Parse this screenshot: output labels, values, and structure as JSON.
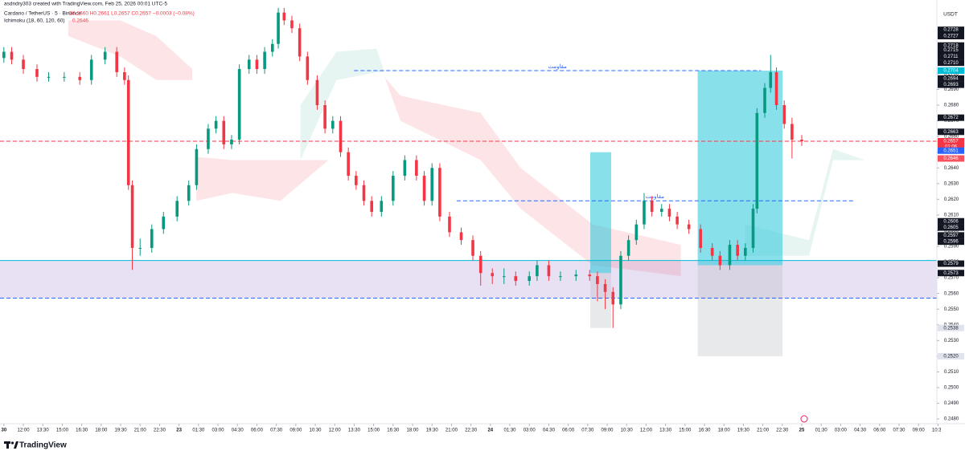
{
  "header": {
    "credit": "asdndry303 created with TradingView.com, Feb 25, 2026 00:01 UTC-5",
    "symbol": "Cardano / TetherUS · 5 · Binance",
    "ohlc": "O0.2660 H0.2661 L0.2657 C0.2657 −0.0003 (−0.08%)",
    "indicator": "Ichimoku (18, 60, 120, 60)",
    "indicator_value": "0.2646",
    "currency": "USDT",
    "logo": "TradingView"
  },
  "chart_data": {
    "type": "candlestick",
    "up_color": "#089981",
    "down_color": "#f23645",
    "grid": false,
    "xlim": [
      -13.8,
      58.6
    ],
    "ylim": [
      0.2477,
      0.2747
    ],
    "xticks": [
      {
        "value": -13.5,
        "label": "30"
      },
      {
        "value": -12,
        "label": "12:00"
      },
      {
        "value": -10.5,
        "label": "13:30"
      },
      {
        "value": -9,
        "label": "15:00"
      },
      {
        "value": -7.5,
        "label": "16:30"
      },
      {
        "value": -6,
        "label": "18:00"
      },
      {
        "value": -4.5,
        "label": "19:30"
      },
      {
        "value": -3,
        "label": "21:00"
      },
      {
        "value": -1.5,
        "label": "22:30"
      },
      {
        "value": 0,
        "label": "23"
      },
      {
        "value": 1.5,
        "label": "01:30"
      },
      {
        "value": 3,
        "label": "03:00"
      },
      {
        "value": 4.5,
        "label": "04:30"
      },
      {
        "value": 6,
        "label": "06:00"
      },
      {
        "value": 7.5,
        "label": "07:30"
      },
      {
        "value": 9,
        "label": "09:00"
      },
      {
        "value": 10.5,
        "label": "10:30"
      },
      {
        "value": 12,
        "label": "12:00"
      },
      {
        "value": 13.5,
        "label": "13:30"
      },
      {
        "value": 15,
        "label": "15:00"
      },
      {
        "value": 16.5,
        "label": "16:30"
      },
      {
        "value": 18,
        "label": "18:00"
      },
      {
        "value": 19.5,
        "label": "19:30"
      },
      {
        "value": 21,
        "label": "21:00"
      },
      {
        "value": 22.5,
        "label": "22:30"
      },
      {
        "value": 24,
        "label": "24"
      },
      {
        "value": 25.5,
        "label": "01:30"
      },
      {
        "value": 27,
        "label": "03:00"
      },
      {
        "value": 28.5,
        "label": "04:30"
      },
      {
        "value": 30,
        "label": "06:00"
      },
      {
        "value": 31.5,
        "label": "07:30"
      },
      {
        "value": 33,
        "label": "09:00"
      },
      {
        "value": 34.5,
        "label": "10:30"
      },
      {
        "value": 36,
        "label": "12:00"
      },
      {
        "value": 37.5,
        "label": "13:30"
      },
      {
        "value": 39,
        "label": "15:00"
      },
      {
        "value": 40.5,
        "label": "16:30"
      },
      {
        "value": 42,
        "label": "18:00"
      },
      {
        "value": 43.5,
        "label": "19:30"
      },
      {
        "value": 45,
        "label": "21:00"
      },
      {
        "value": 46.5,
        "label": "22:30"
      },
      {
        "value": 48,
        "label": "25"
      },
      {
        "value": 49.5,
        "label": "01:30"
      },
      {
        "value": 51,
        "label": "03:00"
      },
      {
        "value": 52.5,
        "label": "04:30"
      },
      {
        "value": 54,
        "label": "06:00"
      },
      {
        "value": 55.5,
        "label": "07:30"
      },
      {
        "value": 57,
        "label": "09:00"
      },
      {
        "value": 58.5,
        "label": "10:30"
      }
    ],
    "yticks": [
      {
        "value": 0.248,
        "label": "0.2480"
      },
      {
        "value": 0.249,
        "label": "0.2490"
      },
      {
        "value": 0.25,
        "label": "0.2500"
      },
      {
        "value": 0.251,
        "label": "0.2510"
      },
      {
        "value": 0.252,
        "label": "0.2520"
      },
      {
        "value": 0.253,
        "label": "0.2530"
      },
      {
        "value": 0.254,
        "label": "0.2540"
      },
      {
        "value": 0.255,
        "label": "0.2550"
      },
      {
        "value": 0.256,
        "label": "0.2560"
      },
      {
        "value": 0.257,
        "label": "0.2570"
      },
      {
        "value": 0.258,
        "label": "0.2580"
      },
      {
        "value": 0.259,
        "label": "0.2590"
      },
      {
        "value": 0.26,
        "label": "0.2600"
      },
      {
        "value": 0.261,
        "label": "0.2610"
      },
      {
        "value": 0.262,
        "label": "0.2620"
      },
      {
        "value": 0.263,
        "label": "0.2630"
      },
      {
        "value": 0.264,
        "label": "0.2640"
      },
      {
        "value": 0.265,
        "label": "0.2650"
      },
      {
        "value": 0.266,
        "label": "0.2660"
      },
      {
        "value": 0.267,
        "label": "0.2670"
      },
      {
        "value": 0.268,
        "label": "0.2680"
      },
      {
        "value": 0.269,
        "label": "0.2690"
      },
      {
        "value": 0.27,
        "label": "0.2700"
      }
    ],
    "x": [
      -13.5,
      -12.9,
      -12,
      -10.95,
      -10.05,
      -8.85,
      -7.65,
      -6.75,
      -5.7,
      -4.8,
      -4.2,
      -3.9,
      -3.6,
      -3,
      -2.1,
      -1.2,
      -0.15,
      0.75,
      1.35,
      2.25,
      2.85,
      3.45,
      4.05,
      4.65,
      5.4,
      6,
      6.6,
      7.2,
      7.65,
      8.1,
      8.7,
      9.3,
      9.9,
      10.65,
      11.25,
      11.85,
      12.45,
      13.05,
      13.65,
      14.25,
      14.85,
      15.6,
      16.5,
      17.4,
      18.3,
      18.9,
      19.5,
      20.1,
      20.85,
      21.75,
      22.65,
      23.25,
      24.15,
      25.05,
      25.95,
      27,
      27.6,
      28.5,
      29.4,
      30.6,
      31.65,
      32.25,
      32.85,
      33.45,
      34.05,
      34.65,
      35.25,
      35.85,
      36.45,
      37.2,
      37.8,
      38.4,
      39.3,
      40.2,
      41.1,
      41.7,
      42.45,
      43.05,
      43.65,
      44.25,
      44.55,
      45.15,
      45.6,
      46.05,
      46.65,
      47.25,
      48
    ],
    "open": [
      0.271,
      0.2714,
      0.2709,
      0.2703,
      0.2698,
      0.2698,
      0.2698,
      0.2696,
      0.2709,
      0.2714,
      0.2701,
      0.2696,
      0.2629,
      0.2589,
      0.2589,
      0.2601,
      0.2609,
      0.2619,
      0.2629,
      0.2652,
      0.2665,
      0.267,
      0.2655,
      0.2658,
      0.2703,
      0.2709,
      0.2703,
      0.2714,
      0.2719,
      0.2739,
      0.2734,
      0.2729,
      0.2711,
      0.2696,
      0.268,
      0.2665,
      0.267,
      0.265,
      0.2635,
      0.2629,
      0.2619,
      0.2612,
      0.2619,
      0.2635,
      0.2645,
      0.2635,
      0.2619,
      0.264,
      0.2609,
      0.2599,
      0.2594,
      0.2584,
      0.2573,
      0.2571,
      0.2571,
      0.2568,
      0.2571,
      0.2578,
      0.2571,
      0.2571,
      0.2572,
      0.2571,
      0.2566,
      0.2561,
      0.2553,
      0.2584,
      0.2594,
      0.2604,
      0.2619,
      0.2612,
      0.2614,
      0.2609,
      0.2604,
      0.2601,
      0.2589,
      0.2584,
      0.2578,
      0.2591,
      0.2584,
      0.2589,
      0.2614,
      0.2675,
      0.2691,
      0.2701,
      0.268,
      0.2668,
      0.2658
    ],
    "high": [
      0.2717,
      0.2717,
      0.2712,
      0.2706,
      0.2701,
      0.2701,
      0.2701,
      0.2712,
      0.2717,
      0.2717,
      0.2704,
      0.2699,
      0.2632,
      0.2595,
      0.2604,
      0.2612,
      0.2622,
      0.2632,
      0.2655,
      0.2668,
      0.2673,
      0.2673,
      0.2661,
      0.2706,
      0.2712,
      0.2712,
      0.2717,
      0.2722,
      0.2742,
      0.2742,
      0.2737,
      0.2732,
      0.2714,
      0.2699,
      0.2683,
      0.2673,
      0.2673,
      0.2653,
      0.2638,
      0.2632,
      0.2622,
      0.2622,
      0.2638,
      0.2648,
      0.2648,
      0.2638,
      0.2643,
      0.2643,
      0.2612,
      0.2602,
      0.2597,
      0.2587,
      0.2576,
      0.2576,
      0.2574,
      0.2574,
      0.2581,
      0.2581,
      0.2574,
      0.2575,
      0.2575,
      0.2574,
      0.2569,
      0.2564,
      0.2587,
      0.2597,
      0.2607,
      0.2624,
      0.2622,
      0.2617,
      0.2617,
      0.2612,
      0.2607,
      0.2604,
      0.2592,
      0.2587,
      0.2594,
      0.2594,
      0.2592,
      0.2617,
      0.2678,
      0.2694,
      0.2712,
      0.2704,
      0.2683,
      0.2672,
      0.2661
    ],
    "low": [
      0.2707,
      0.2706,
      0.27,
      0.2695,
      0.2695,
      0.2695,
      0.2693,
      0.2693,
      0.2706,
      0.2698,
      0.2693,
      0.2626,
      0.2575,
      0.2584,
      0.2586,
      0.2598,
      0.2606,
      0.2616,
      0.2626,
      0.2649,
      0.2662,
      0.2652,
      0.2652,
      0.2655,
      0.27,
      0.27,
      0.27,
      0.2711,
      0.2716,
      0.2731,
      0.2726,
      0.2708,
      0.2693,
      0.2677,
      0.2662,
      0.2662,
      0.2647,
      0.2632,
      0.2626,
      0.2616,
      0.2609,
      0.2609,
      0.2616,
      0.2632,
      0.2632,
      0.2616,
      0.2616,
      0.2606,
      0.2596,
      0.2591,
      0.2581,
      0.2565,
      0.2566,
      0.2566,
      0.2565,
      0.2565,
      0.2568,
      0.2568,
      0.2568,
      0.2568,
      0.2568,
      0.2555,
      0.255,
      0.2538,
      0.255,
      0.2581,
      0.2591,
      0.2601,
      0.2609,
      0.2609,
      0.2606,
      0.2601,
      0.2598,
      0.2586,
      0.2581,
      0.2575,
      0.2575,
      0.2581,
      0.2581,
      0.2586,
      0.2611,
      0.2672,
      0.2688,
      0.2677,
      0.2665,
      0.2646,
      0.2654
    ],
    "close": [
      0.2714,
      0.2709,
      0.2703,
      0.2698,
      0.2698,
      0.2698,
      0.2696,
      0.2709,
      0.2714,
      0.2701,
      0.2696,
      0.2629,
      0.2589,
      0.2589,
      0.2601,
      0.2609,
      0.2619,
      0.2629,
      0.2652,
      0.2665,
      0.267,
      0.2655,
      0.2658,
      0.2703,
      0.2709,
      0.2703,
      0.2714,
      0.2719,
      0.2739,
      0.2734,
      0.2729,
      0.2711,
      0.2696,
      0.268,
      0.2665,
      0.267,
      0.265,
      0.2635,
      0.2629,
      0.2619,
      0.2612,
      0.2619,
      0.2635,
      0.2645,
      0.2635,
      0.2619,
      0.264,
      0.2609,
      0.2599,
      0.2594,
      0.2584,
      0.2573,
      0.2571,
      0.2571,
      0.2568,
      0.2571,
      0.2578,
      0.2571,
      0.2571,
      0.2572,
      0.2571,
      0.2566,
      0.2561,
      0.2553,
      0.2584,
      0.2594,
      0.2604,
      0.2619,
      0.2612,
      0.2614,
      0.2609,
      0.2604,
      0.2601,
      0.2589,
      0.2584,
      0.2578,
      0.2591,
      0.2584,
      0.2589,
      0.2614,
      0.2675,
      0.2691,
      0.2701,
      0.268,
      0.2668,
      0.2658,
      0.2657
    ],
    "clouds": [
      {
        "color": "rgba(242,54,69,0.13)",
        "x": [
          -8.54,
          -4.53,
          -1.75,
          1.02
        ],
        "top": [
          0.2734,
          0.2734,
          0.2724,
          0.2703
        ],
        "bottom": [
          0.2724,
          0.2711,
          0.2696,
          0.2696
        ]
      },
      {
        "color": "rgba(242,54,69,0.13)",
        "x": [
          1.33,
          4.11,
          7.82,
          11.52
        ],
        "top": [
          0.2647,
          0.2645,
          0.2645,
          0.2645
        ],
        "bottom": [
          0.2619,
          0.2624,
          0.2619,
          0.2645
        ]
      },
      {
        "color": "rgba(8,153,129,0.10)",
        "x": [
          9.36,
          12.14,
          15.22,
          15.84
        ],
        "top": [
          0.268,
          0.2714,
          0.2716,
          0.2701
        ],
        "bottom": [
          0.2645,
          0.2696,
          0.2701,
          0.2701
        ]
      },
      {
        "color": "rgba(242,54,69,0.13)",
        "x": [
          15.84,
          17.07,
          23.25,
          26.33,
          31.89,
          38.68
        ],
        "top": [
          0.2698,
          0.2686,
          0.2675,
          0.264,
          0.2604,
          0.2591
        ],
        "bottom": [
          0.2698,
          0.267,
          0.2645,
          0.2614,
          0.2578,
          0.2571
        ]
      },
      {
        "color": "rgba(8,153,129,0.10)",
        "x": [
          43.62,
          48.56
        ],
        "top": [
          0.2604,
          0.2594
        ],
        "bottom": [
          0.2584,
          0.2584
        ]
      },
      {
        "color": "rgba(8,153,129,0.10)",
        "x": [
          48.56,
          50.41,
          52.88
        ],
        "top": [
          0.2594,
          0.2652,
          0.2645
        ],
        "bottom": [
          0.2584,
          0.2645,
          0.2645
        ]
      }
    ],
    "zones": [
      {
        "top": 0.2581,
        "bottom": 0.2557,
        "color": "rgba(149,117,205,0.22)"
      }
    ],
    "positions": [
      {
        "x": [
          31.7,
          33.31
        ],
        "target": 0.265,
        "entry": 0.2573,
        "stop": 0.2538
      },
      {
        "x": [
          39.98,
          46.52
        ],
        "target": 0.2702,
        "entry": 0.2578,
        "stop": 0.252
      }
    ],
    "hlines": [
      {
        "value": 0.2702,
        "x": [
          13.49,
          44.85
        ],
        "color": "#2962ff",
        "dashed": true,
        "label": "مقاومت"
      },
      {
        "value": 0.2619,
        "x": [
          21.4,
          51.95
        ],
        "color": "#2962ff",
        "dashed": true,
        "label": "مقاومت"
      },
      {
        "value": 0.2581,
        "color": "#00bcd4",
        "dashed": false
      },
      {
        "value": 0.2557,
        "color": "#2962ff",
        "dashed": true
      },
      {
        "value": 0.2657,
        "color": "#f23645",
        "dashed": true
      }
    ],
    "price_tags": [
      {
        "value": 0.2728,
        "label": "0.2728",
        "color": "#131722",
        "text_color": "#ffffff"
      },
      {
        "value": 0.2724,
        "label": "0.2727",
        "color": "#131722",
        "text_color": "#ffffff"
      },
      {
        "value": 0.2718,
        "label": "0.2718",
        "color": "#131722",
        "text_color": "#ffffff"
      },
      {
        "value": 0.2715,
        "label": "0.2715",
        "color": "#131722",
        "text_color": "#ffffff"
      },
      {
        "value": 0.2711,
        "label": "0.2711",
        "color": "#131722",
        "text_color": "#ffffff"
      },
      {
        "value": 0.2707,
        "label": "0.2710",
        "color": "#131722",
        "text_color": "#ffffff"
      },
      {
        "value": 0.2702,
        "label": "0.2704",
        "color": "#00bcd4",
        "text_color": "#ffffff"
      },
      {
        "value": 0.2697,
        "label": "0.2694",
        "color": "#131722",
        "text_color": "#ffffff"
      },
      {
        "value": 0.2693,
        "label": "0.2693",
        "color": "#131722",
        "text_color": "#ffffff"
      },
      {
        "value": 0.2672,
        "label": "0.2672",
        "color": "#131722",
        "text_color": "#ffffff"
      },
      {
        "value": 0.2663,
        "label": "0.2663",
        "color": "#131722",
        "text_color": "#ffffff"
      },
      {
        "value": 0.2657,
        "label": "0.2657",
        "sublabel": "01:06",
        "color": "#f23645",
        "text_color": "#ffffff"
      },
      {
        "value": 0.2651,
        "label": "0.2651",
        "color": "#2962ff",
        "text_color": "#ffffff"
      },
      {
        "value": 0.2646,
        "label": "0.2646",
        "color": "#f7525f",
        "text_color": "#ffffff"
      },
      {
        "value": 0.2606,
        "label": "0.2606",
        "color": "#131722",
        "text_color": "#ffffff"
      },
      {
        "value": 0.2602,
        "label": "0.2605",
        "color": "#131722",
        "text_color": "#ffffff"
      },
      {
        "value": 0.2597,
        "label": "0.2597",
        "color": "#131722",
        "text_color": "#ffffff"
      },
      {
        "value": 0.2593,
        "label": "0.2596",
        "color": "#131722",
        "text_color": "#ffffff"
      },
      {
        "value": 0.2579,
        "label": "0.2579",
        "color": "#131722",
        "text_color": "#ffffff"
      },
      {
        "value": 0.2573,
        "label": "0.2573",
        "color": "#131722",
        "text_color": "#ffffff"
      },
      {
        "value": 0.2538,
        "label": "0.2538",
        "color": "#e0e3eb",
        "text_color": "#131722"
      },
      {
        "value": 0.252,
        "label": "0.2520",
        "color": "#e0e3eb",
        "text_color": "#131722"
      }
    ]
  }
}
